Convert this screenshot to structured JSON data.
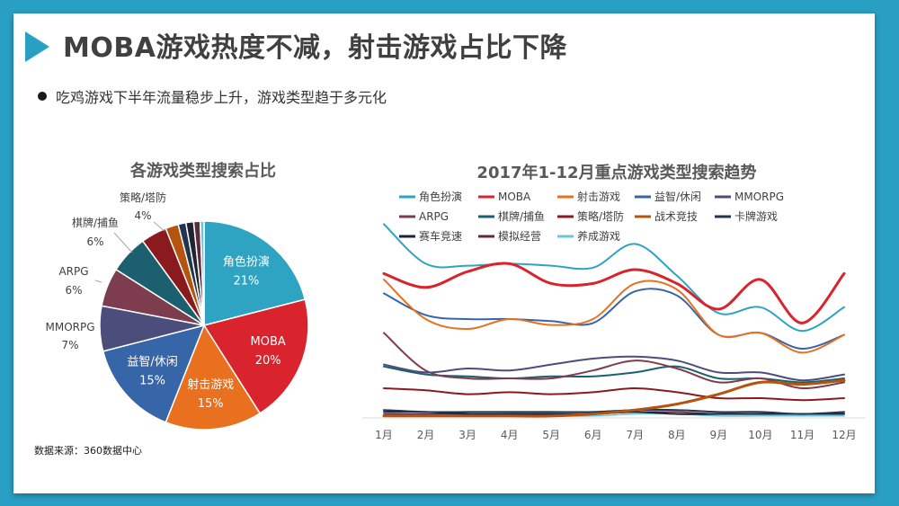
{
  "page": {
    "title": "MOBA游戏热度不减，射击游戏占比下降",
    "bullet": "吃鸡游戏下半年流量稳步上升，游戏类型趋于多元化",
    "source": "数据来源：360数据中心"
  },
  "chart_data": [
    {
      "type": "pie",
      "title": "各游戏类型搜索占比",
      "slices": [
        {
          "label": "角色扮演",
          "value": 21,
          "display": "21%",
          "color": "#2ea3c2",
          "label_inside": true
        },
        {
          "label": "MOBA",
          "value": 20,
          "display": "20%",
          "color": "#d9232d",
          "label_inside": true
        },
        {
          "label": "射击游戏",
          "value": 15,
          "display": "15%",
          "color": "#e8701f",
          "label_inside": true
        },
        {
          "label": "益智/休闲",
          "value": 15,
          "display": "15%",
          "color": "#3665a8",
          "label_inside": true
        },
        {
          "label": "MMORPG",
          "value": 7,
          "display": "7%",
          "color": "#4b4d7a",
          "label_inside": false
        },
        {
          "label": "ARPG",
          "value": 6,
          "display": "6%",
          "color": "#7e3d4e",
          "label_inside": false
        },
        {
          "label": "棋牌/捕鱼",
          "value": 6,
          "display": "6%",
          "color": "#1c5f6e",
          "label_inside": false
        },
        {
          "label": "策略/塔防",
          "value": 4,
          "display": "4%",
          "color": "#8b1a1f",
          "label_inside": false
        },
        {
          "label": "战术竞技",
          "value": 2,
          "display": "",
          "color": "#b5540f",
          "label_inside": false
        },
        {
          "label": "卡牌游戏",
          "value": 1.2,
          "display": "",
          "color": "#1f3552",
          "label_inside": false
        },
        {
          "label": "赛车竞速",
          "value": 1.2,
          "display": "",
          "color": "#222233",
          "label_inside": false
        },
        {
          "label": "模拟经营",
          "value": 1,
          "display": "",
          "color": "#5b2a3c",
          "label_inside": false
        },
        {
          "label": "养成游戏",
          "value": 0.6,
          "display": "",
          "color": "#6cc5da",
          "label_inside": false
        }
      ]
    },
    {
      "type": "line",
      "title": "2017年1-12月重点游戏类型搜索趋势",
      "categories": [
        "1月",
        "2月",
        "3月",
        "4月",
        "5月",
        "6月",
        "7月",
        "8月",
        "9月",
        "10月",
        "11月",
        "12月"
      ],
      "ylim": [
        0,
        100
      ],
      "grid": false,
      "legend": "top",
      "series": [
        {
          "name": "角色扮演",
          "color": "#2ea3c2",
          "width": 2,
          "values": [
            98,
            78,
            77,
            78,
            77,
            76,
            88,
            72,
            53,
            56,
            44,
            56
          ]
        },
        {
          "name": "MOBA",
          "color": "#d9232d",
          "width": 3,
          "values": [
            73,
            66,
            74,
            78,
            68,
            68,
            75,
            68,
            55,
            70,
            48,
            73
          ]
        },
        {
          "name": "射击游戏",
          "color": "#e8701f",
          "width": 2,
          "values": [
            70,
            50,
            45,
            50,
            47,
            50,
            68,
            65,
            42,
            43,
            33,
            42
          ]
        },
        {
          "name": "益智/休闲",
          "color": "#3665a8",
          "width": 2,
          "values": [
            63,
            52,
            50,
            50,
            49,
            48,
            64,
            62,
            42,
            43,
            35,
            42
          ]
        },
        {
          "name": "MMORPG",
          "color": "#4b4d7a",
          "width": 2,
          "values": [
            27,
            23,
            25,
            24,
            27,
            30,
            31,
            29,
            23,
            23,
            19,
            22
          ]
        },
        {
          "name": "ARPG",
          "color": "#7e3d4e",
          "width": 2,
          "values": [
            43,
            24,
            20,
            20,
            20,
            24,
            29,
            25,
            18,
            20,
            15,
            18
          ]
        },
        {
          "name": "棋牌/捕鱼",
          "color": "#1c5f6e",
          "width": 2,
          "values": [
            26,
            22,
            21,
            20,
            21,
            21,
            23,
            26,
            20,
            20,
            18,
            20
          ]
        },
        {
          "name": "策略/塔防",
          "color": "#8b1a1f",
          "width": 2,
          "values": [
            15,
            14,
            12,
            13,
            12,
            13,
            15,
            13,
            10,
            10,
            9,
            10
          ]
        },
        {
          "name": "战术竞技",
          "color": "#b5540f",
          "width": 3,
          "values": [
            1,
            1,
            1,
            1,
            1,
            2,
            4,
            7,
            12,
            18,
            17,
            19
          ]
        },
        {
          "name": "卡牌游戏",
          "color": "#1f3552",
          "width": 2,
          "values": [
            4,
            3,
            3,
            3,
            3,
            3,
            4,
            4,
            3,
            3,
            2,
            3
          ]
        },
        {
          "name": "赛车竞速",
          "color": "#222233",
          "width": 2,
          "values": [
            3,
            3,
            2,
            2,
            2,
            2,
            3,
            2,
            2,
            2,
            2,
            2
          ]
        },
        {
          "name": "模拟经营",
          "color": "#5b2a3c",
          "width": 1.5,
          "values": [
            2,
            2,
            2,
            2,
            2,
            2,
            3,
            3,
            2,
            2,
            2,
            2
          ]
        },
        {
          "name": "养成游戏",
          "color": "#6cc5da",
          "width": 1.5,
          "values": [
            1,
            1,
            1,
            1,
            1,
            1,
            2,
            2,
            1,
            1,
            1,
            1
          ]
        }
      ]
    }
  ]
}
